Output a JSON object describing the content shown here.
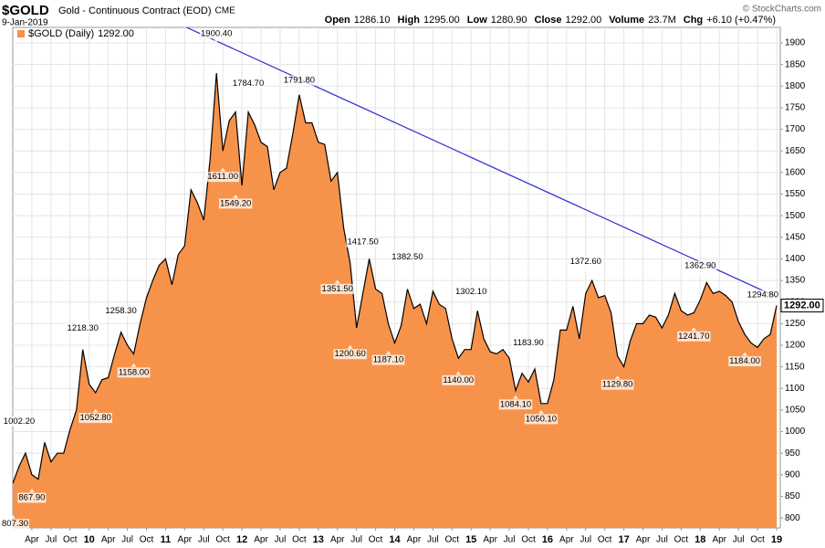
{
  "chart_data": {
    "type": "area",
    "symbol": "$GOLD",
    "title": "Gold - Continuous Contract (EOD)",
    "exchange": "CME",
    "date": "9-Jan-2019",
    "credit": "© StockCharts.com",
    "stats": [
      {
        "label": "Open",
        "value": "1286.10"
      },
      {
        "label": "High",
        "value": "1295.00"
      },
      {
        "label": "Low",
        "value": "1280.90"
      },
      {
        "label": "Close",
        "value": "1292.00"
      },
      {
        "label": "Volume",
        "value": "23.7M"
      },
      {
        "label": "Chg",
        "value": "+6.10 (+0.47%)"
      }
    ],
    "legend_value": "1292.00",
    "x": [
      "2009-01",
      "2009-02",
      "2009-03",
      "2009-04",
      "2009-05",
      "2009-06",
      "2009-07",
      "2009-08",
      "2009-09",
      "2009-10",
      "2009-11",
      "2009-12",
      "2010-01",
      "2010-02",
      "2010-03",
      "2010-04",
      "2010-05",
      "2010-06",
      "2010-07",
      "2010-08",
      "2010-09",
      "2010-10",
      "2010-11",
      "2010-12",
      "2011-01",
      "2011-02",
      "2011-03",
      "2011-04",
      "2011-05",
      "2011-06",
      "2011-07",
      "2011-08",
      "2011-09",
      "2011-10",
      "2011-11",
      "2011-12",
      "2012-01",
      "2012-02",
      "2012-03",
      "2012-04",
      "2012-05",
      "2012-06",
      "2012-07",
      "2012-08",
      "2012-09",
      "2012-10",
      "2012-11",
      "2012-12",
      "2013-01",
      "2013-02",
      "2013-03",
      "2013-04",
      "2013-05",
      "2013-06",
      "2013-07",
      "2013-08",
      "2013-09",
      "2013-10",
      "2013-11",
      "2013-12",
      "2014-01",
      "2014-02",
      "2014-03",
      "2014-04",
      "2014-05",
      "2014-06",
      "2014-07",
      "2014-08",
      "2014-09",
      "2014-10",
      "2014-11",
      "2014-12",
      "2015-01",
      "2015-02",
      "2015-03",
      "2015-04",
      "2015-05",
      "2015-06",
      "2015-07",
      "2015-08",
      "2015-09",
      "2015-10",
      "2015-11",
      "2015-12",
      "2016-01",
      "2016-02",
      "2016-03",
      "2016-04",
      "2016-05",
      "2016-06",
      "2016-07",
      "2016-08",
      "2016-09",
      "2016-10",
      "2016-11",
      "2016-12",
      "2017-01",
      "2017-02",
      "2017-03",
      "2017-04",
      "2017-05",
      "2017-06",
      "2017-07",
      "2017-08",
      "2017-09",
      "2017-10",
      "2017-11",
      "2017-12",
      "2018-01",
      "2018-02",
      "2018-03",
      "2018-04",
      "2018-05",
      "2018-06",
      "2018-07",
      "2018-08",
      "2018-09",
      "2018-10",
      "2018-11",
      "2018-12",
      "2019-01"
    ],
    "series": [
      {
        "name": "$GOLD (Daily)",
        "color": "#f7924a",
        "line_color": "#000000",
        "values": [
          880,
          920,
          950,
          900,
          890,
          975,
          930,
          950,
          950,
          1005,
          1050,
          1190,
          1110,
          1090,
          1120,
          1125,
          1180,
          1230,
          1200,
          1180,
          1250,
          1310,
          1350,
          1385,
          1400,
          1340,
          1410,
          1430,
          1560,
          1530,
          1490,
          1630,
          1830,
          1650,
          1720,
          1740,
          1570,
          1740,
          1710,
          1670,
          1660,
          1560,
          1600,
          1610,
          1690,
          1780,
          1715,
          1715,
          1670,
          1665,
          1580,
          1600,
          1470,
          1390,
          1240,
          1320,
          1400,
          1330,
          1320,
          1250,
          1205,
          1245,
          1330,
          1285,
          1295,
          1250,
          1325,
          1295,
          1285,
          1215,
          1170,
          1190,
          1190,
          1280,
          1215,
          1185,
          1180,
          1190,
          1170,
          1095,
          1135,
          1115,
          1145,
          1065,
          1065,
          1120,
          1235,
          1235,
          1290,
          1215,
          1320,
          1350,
          1310,
          1315,
          1275,
          1175,
          1150,
          1210,
          1250,
          1250,
          1270,
          1265,
          1240,
          1270,
          1320,
          1280,
          1270,
          1275,
          1305,
          1345,
          1320,
          1325,
          1315,
          1300,
          1255,
          1225,
          1205,
          1195,
          1215,
          1225,
          1292
        ]
      }
    ],
    "annotations": [
      {
        "x": "2009-01",
        "value": 807.3,
        "label": "807.30"
      },
      {
        "x": "2009-02",
        "value": 1002.2,
        "label": "1002.20"
      },
      {
        "x": "2009-04",
        "value": 867.9,
        "label": "867.90"
      },
      {
        "x": "2009-12",
        "value": 1218.3,
        "label": "1218.30"
      },
      {
        "x": "2010-02",
        "value": 1052.8,
        "label": "1052.80"
      },
      {
        "x": "2010-06",
        "value": 1258.3,
        "label": "1258.30"
      },
      {
        "x": "2010-08",
        "value": 1158,
        "label": "1158.00"
      },
      {
        "x": "2011-09",
        "value": 1900.4,
        "label": "1900.40"
      },
      {
        "x": "2011-10",
        "value": 1611,
        "label": "1611.00"
      },
      {
        "x": "2011-12",
        "value": 1549.2,
        "label": "1549.20"
      },
      {
        "x": "2012-02",
        "value": 1784.7,
        "label": "1784.70"
      },
      {
        "x": "2012-10",
        "value": 1791.8,
        "label": "1791.80"
      },
      {
        "x": "2013-04",
        "value": 1351.5,
        "label": "1351.50"
      },
      {
        "x": "2013-06",
        "value": 1200.6,
        "label": "1200.60"
      },
      {
        "x": "2013-08",
        "value": 1417.5,
        "label": "1417.50"
      },
      {
        "x": "2013-12",
        "value": 1187.1,
        "label": "1187.10"
      },
      {
        "x": "2014-03",
        "value": 1382.5,
        "label": "1382.50"
      },
      {
        "x": "2014-11",
        "value": 1140,
        "label": "1140.00"
      },
      {
        "x": "2015-01",
        "value": 1302.1,
        "label": "1302.10"
      },
      {
        "x": "2015-08",
        "value": 1084.1,
        "label": "1084.10"
      },
      {
        "x": "2015-10",
        "value": 1183.9,
        "label": "1183.90"
      },
      {
        "x": "2015-12",
        "value": 1050.1,
        "label": "1050.10"
      },
      {
        "x": "2016-07",
        "value": 1372.6,
        "label": "1372.60"
      },
      {
        "x": "2016-12",
        "value": 1129.8,
        "label": "1129.80"
      },
      {
        "x": "2017-12",
        "value": 1241.7,
        "label": "1241.70"
      },
      {
        "x": "2018-01",
        "value": 1362.9,
        "label": "1362.90"
      },
      {
        "x": "2018-08",
        "value": 1184,
        "label": "1184.00"
      },
      {
        "x": "2019-01",
        "value": 1294.8,
        "label": "1294.80"
      }
    ],
    "trendline": {
      "x": [
        "2011-04",
        "2019-01"
      ],
      "values": [
        1938,
        1312
      ],
      "color": "#2b2bd1"
    },
    "xlim": [
      "2009-01",
      "2019-01"
    ],
    "ylim": [
      777,
      1936
    ],
    "yticks": [
      800,
      850,
      900,
      950,
      1000,
      1050,
      1100,
      1150,
      1200,
      1250,
      1300,
      1350,
      1400,
      1450,
      1500,
      1550,
      1600,
      1650,
      1700,
      1750,
      1800,
      1850,
      1900
    ],
    "xticks": [
      {
        "value": "2009-04",
        "label": "Apr"
      },
      {
        "value": "2009-07",
        "label": "Jul"
      },
      {
        "value": "2009-10",
        "label": "Oct"
      },
      {
        "value": "2010-01",
        "label": "10"
      },
      {
        "value": "2010-04",
        "label": "Apr"
      },
      {
        "value": "2010-07",
        "label": "Jul"
      },
      {
        "value": "2010-10",
        "label": "Oct"
      },
      {
        "value": "2011-01",
        "label": "11"
      },
      {
        "value": "2011-04",
        "label": "Apr"
      },
      {
        "value": "2011-07",
        "label": "Jul"
      },
      {
        "value": "2011-10",
        "label": "Oct"
      },
      {
        "value": "2012-01",
        "label": "12"
      },
      {
        "value": "2012-04",
        "label": "Apr"
      },
      {
        "value": "2012-07",
        "label": "Jul"
      },
      {
        "value": "2012-10",
        "label": "Oct"
      },
      {
        "value": "2013-01",
        "label": "13"
      },
      {
        "value": "2013-04",
        "label": "Apr"
      },
      {
        "value": "2013-07",
        "label": "Jul"
      },
      {
        "value": "2013-10",
        "label": "Oct"
      },
      {
        "value": "2014-01",
        "label": "14"
      },
      {
        "value": "2014-04",
        "label": "Apr"
      },
      {
        "value": "2014-07",
        "label": "Jul"
      },
      {
        "value": "2014-10",
        "label": "Oct"
      },
      {
        "value": "2015-01",
        "label": "15"
      },
      {
        "value": "2015-04",
        "label": "Apr"
      },
      {
        "value": "2015-07",
        "label": "Jul"
      },
      {
        "value": "2015-10",
        "label": "Oct"
      },
      {
        "value": "2016-01",
        "label": "16"
      },
      {
        "value": "2016-04",
        "label": "Apr"
      },
      {
        "value": "2016-07",
        "label": "Jul"
      },
      {
        "value": "2016-10",
        "label": "Oct"
      },
      {
        "value": "2017-01",
        "label": "17"
      },
      {
        "value": "2017-04",
        "label": "Apr"
      },
      {
        "value": "2017-07",
        "label": "Jul"
      },
      {
        "value": "2017-10",
        "label": "Oct"
      },
      {
        "value": "2018-01",
        "label": "18"
      },
      {
        "value": "2018-04",
        "label": "Apr"
      },
      {
        "value": "2018-07",
        "label": "Jul"
      },
      {
        "value": "2018-10",
        "label": "Oct"
      },
      {
        "value": "2019-01",
        "label": "19"
      }
    ],
    "grid": true
  }
}
